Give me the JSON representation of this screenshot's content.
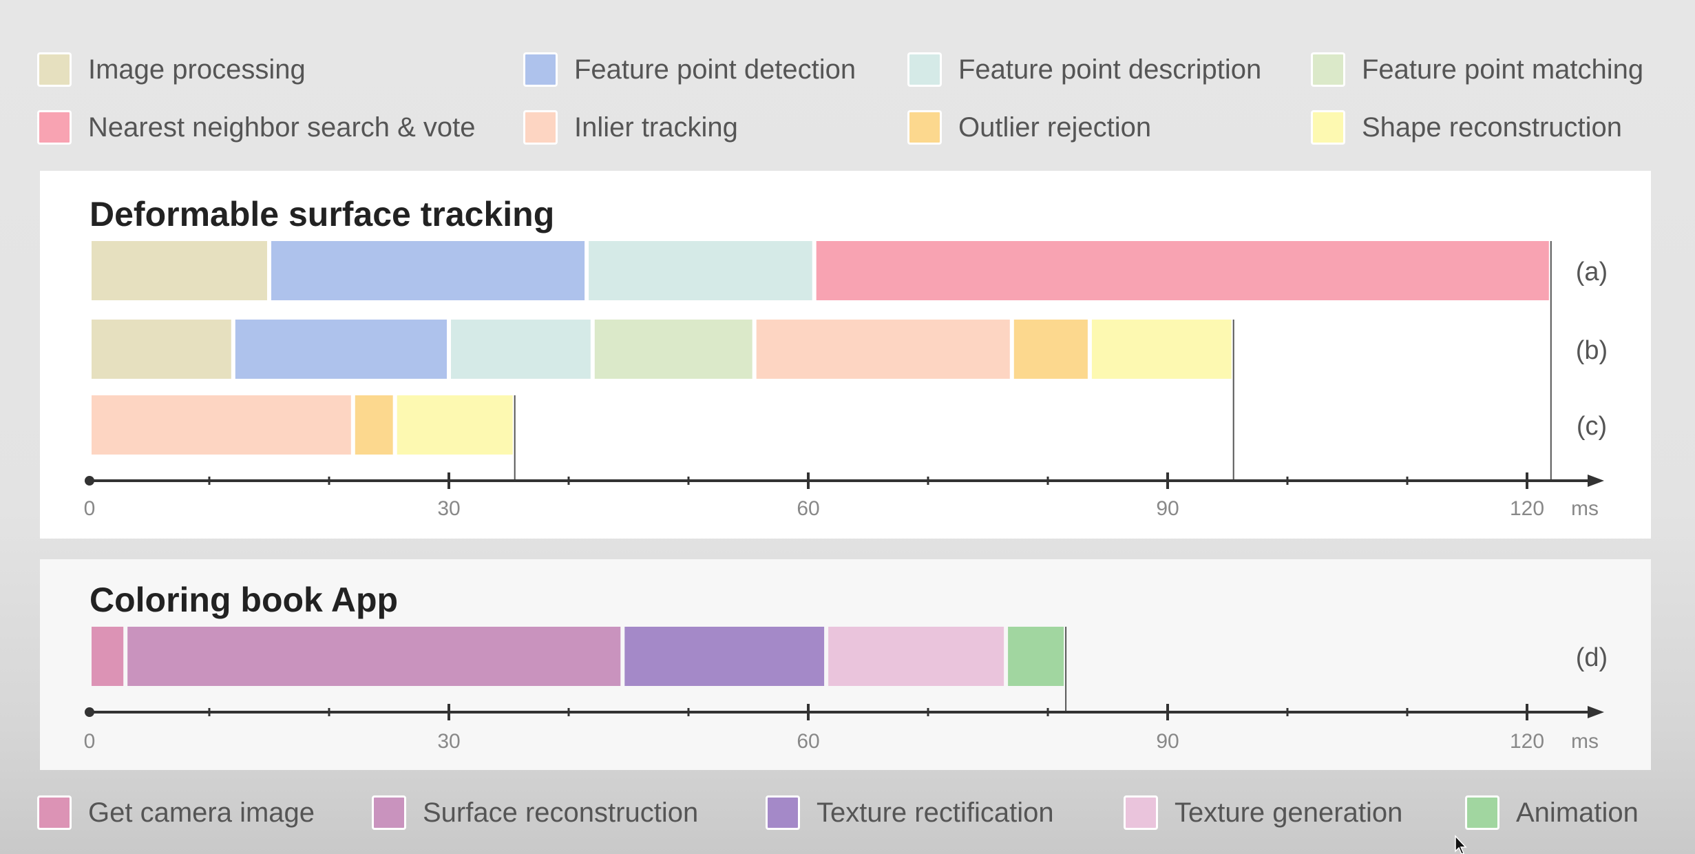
{
  "legend_top": [
    {
      "label": "Image processing",
      "color": "#e6e0bf"
    },
    {
      "label": "Feature point detection",
      "color": "#aec2ec"
    },
    {
      "label": "Feature point description",
      "color": "#d5eae7"
    },
    {
      "label": "Feature point matching",
      "color": "#dbe9c9"
    },
    {
      "label": "Nearest neighbor search & vote",
      "color": "#f8a3b2"
    },
    {
      "label": "Inlier tracking",
      "color": "#fdd5c2"
    },
    {
      "label": "Outlier rejection",
      "color": "#fcd88e"
    },
    {
      "label": "Shape reconstruction",
      "color": "#fdf9b1"
    }
  ],
  "legend_bottom": [
    {
      "label": "Get camera image",
      "color": "#dc93b5"
    },
    {
      "label": "Surface reconstruction",
      "color": "#c993be"
    },
    {
      "label": "Texture rectification",
      "color": "#a489c8"
    },
    {
      "label": "Texture generation",
      "color": "#eac4dc"
    },
    {
      "label": "Animation",
      "color": "#a1d6a0"
    }
  ],
  "chart_data": [
    {
      "type": "bar",
      "orientation": "horizontal-stacked",
      "title": "Deformable surface tracking",
      "unit": "ms",
      "xlim": [
        0,
        126
      ],
      "ticks": [
        0,
        30,
        60,
        90,
        120
      ],
      "rows": [
        {
          "label": "(a)",
          "total": 122,
          "segments": [
            {
              "series": "Image processing",
              "start": 0,
              "end": 15
            },
            {
              "series": "Feature point detection",
              "start": 15,
              "end": 41.5
            },
            {
              "series": "Feature point description",
              "start": 41.5,
              "end": 60.5
            },
            {
              "series": "Nearest neighbor search & vote",
              "start": 60.5,
              "end": 122
            }
          ]
        },
        {
          "label": "(b)",
          "total": 95.5,
          "segments": [
            {
              "series": "Image processing",
              "start": 0,
              "end": 12
            },
            {
              "series": "Feature point detection",
              "start": 12,
              "end": 30
            },
            {
              "series": "Feature point description",
              "start": 30,
              "end": 42
            },
            {
              "series": "Feature point matching",
              "start": 42,
              "end": 55.5
            },
            {
              "series": "Inlier tracking",
              "start": 55.5,
              "end": 77
            },
            {
              "series": "Outlier rejection",
              "start": 77,
              "end": 83.5
            },
            {
              "series": "Shape reconstruction",
              "start": 83.5,
              "end": 95.5
            }
          ]
        },
        {
          "label": "(c)",
          "total": 35.5,
          "segments": [
            {
              "series": "Inlier tracking",
              "start": 0,
              "end": 22
            },
            {
              "series": "Outlier rejection",
              "start": 22,
              "end": 25.5
            },
            {
              "series": "Shape reconstruction",
              "start": 25.5,
              "end": 35.5
            }
          ]
        }
      ]
    },
    {
      "type": "bar",
      "orientation": "horizontal-stacked",
      "title": "Coloring book App",
      "unit": "ms",
      "xlim": [
        0,
        126
      ],
      "ticks": [
        0,
        30,
        60,
        90,
        120
      ],
      "rows": [
        {
          "label": "(d)",
          "total": 81.5,
          "segments": [
            {
              "series": "Get camera image",
              "start": 0,
              "end": 3
            },
            {
              "series": "Surface reconstruction",
              "start": 3,
              "end": 44.5
            },
            {
              "series": "Texture rectification",
              "start": 44.5,
              "end": 61.5
            },
            {
              "series": "Texture generation",
              "start": 61.5,
              "end": 76.5
            },
            {
              "series": "Animation",
              "start": 76.5,
              "end": 81.5
            }
          ]
        }
      ]
    }
  ]
}
